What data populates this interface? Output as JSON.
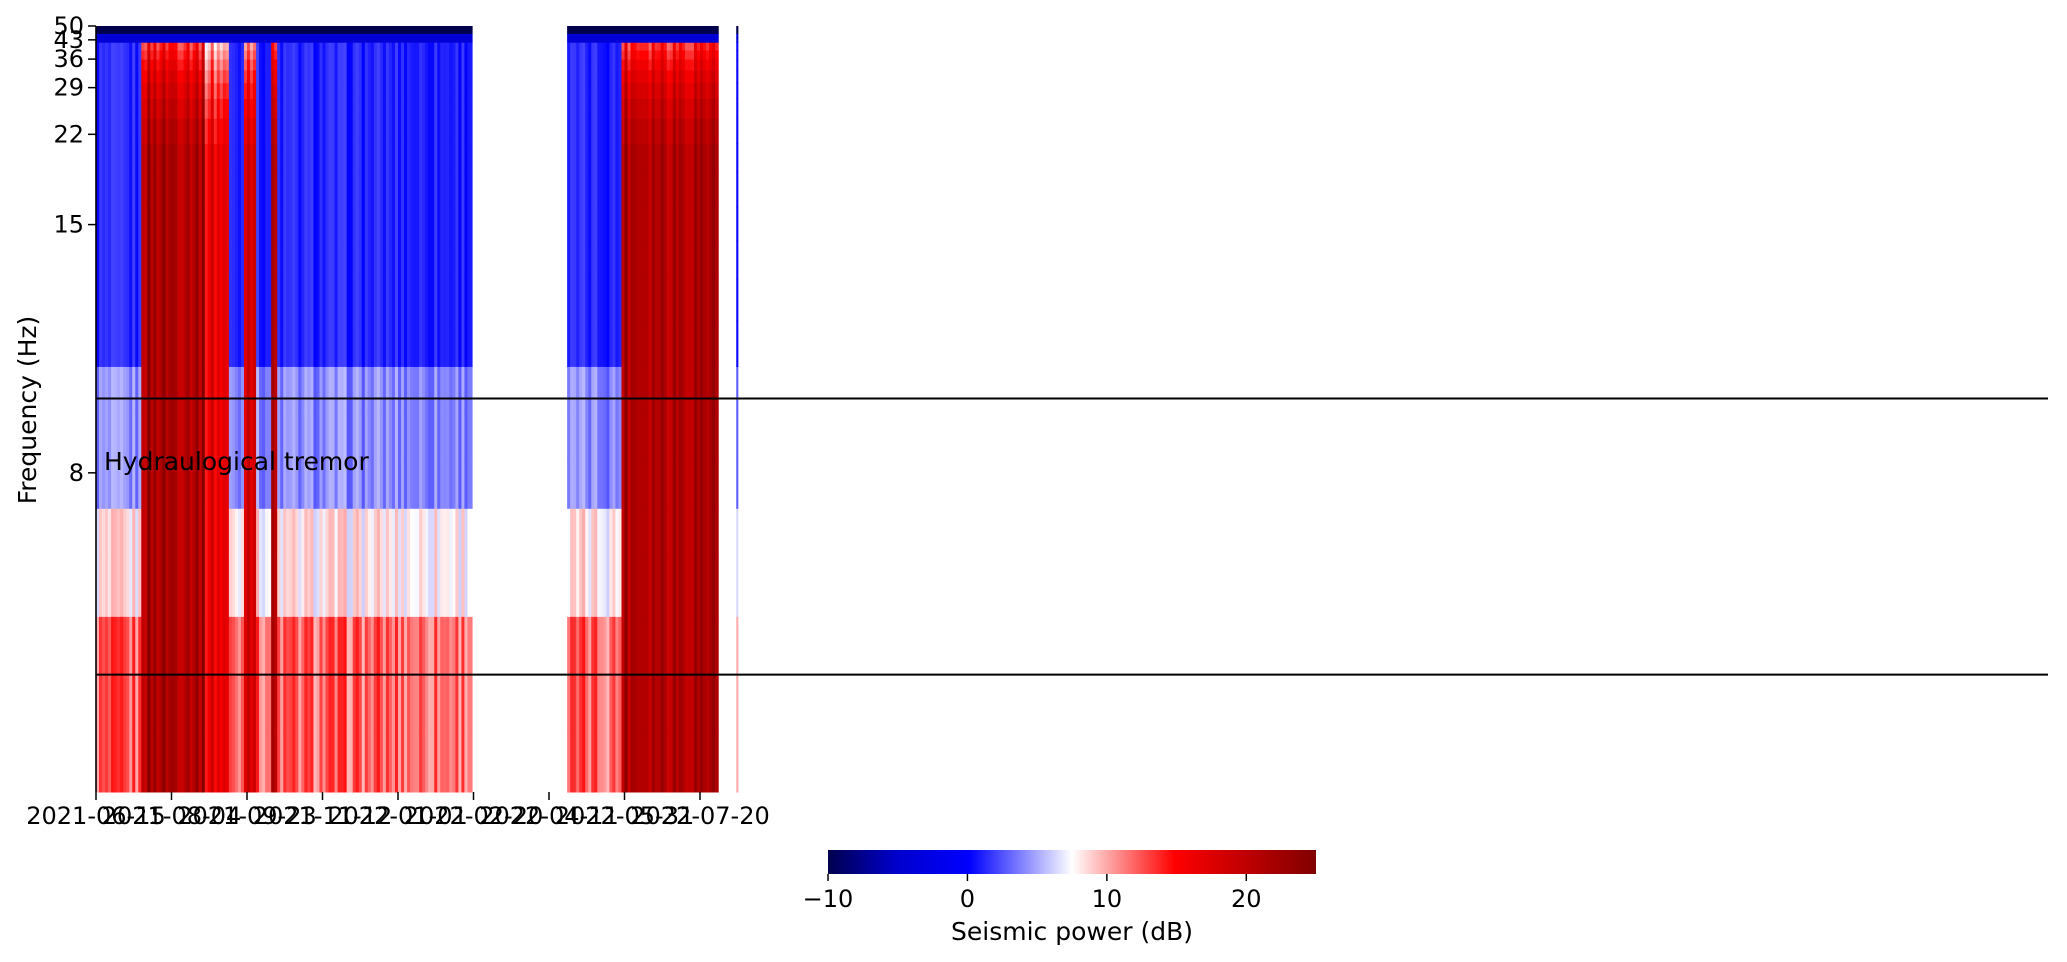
{
  "chart_data": {
    "type": "heatmap",
    "title": "",
    "xlabel": "",
    "ylabel": "Frequency (Hz)",
    "x_range": [
      "2021-06-15",
      "2022-08-15"
    ],
    "y_range": [
      5,
      50
    ],
    "y_scale": "reciprocal",
    "x_tick_labels": [
      "2021-06-15",
      "2021-08-04",
      "2021-09-23",
      "2021-11-12",
      "2022-01-01",
      "2022-02-20",
      "2022-04-11",
      "2022-05-31",
      "2022-07-20"
    ],
    "y_ticks": [
      8,
      15,
      22,
      29,
      36,
      43,
      50
    ],
    "y_tick_labels": [
      "8",
      "15",
      "22",
      "29",
      "36",
      "43",
      "50"
    ],
    "data_coverage": [
      {
        "start": "2021-06-15",
        "end": "2022-02-19"
      },
      {
        "start": "2022-04-23",
        "end": "2022-08-01"
      },
      {
        "start": "2022-08-13",
        "end": "2022-08-14"
      }
    ],
    "high_power_periods": [
      {
        "start": "2021-07-15",
        "end": "2021-08-24",
        "power_db": 22
      },
      {
        "start": "2021-08-26",
        "end": "2021-09-10",
        "power_db": 17
      },
      {
        "start": "2021-09-21",
        "end": "2021-09-28",
        "power_db": 20
      },
      {
        "start": "2021-10-08",
        "end": "2021-10-11",
        "power_db": 20
      },
      {
        "start": "2022-05-28",
        "end": "2022-08-01",
        "power_db": 22
      }
    ],
    "annotations": [
      {
        "text": "Hydraulogical tremor",
        "y_band_hz": [
          5.8,
          9.3
        ]
      }
    ],
    "colorbar": {
      "label": "Seismic power (dB)",
      "range": [
        -10,
        25
      ],
      "ticks": [
        -10,
        0,
        10,
        20
      ],
      "tick_labels": [
        "−10",
        "0",
        "10",
        "20"
      ],
      "colormap": "seismic",
      "colors": [
        "#00004c",
        "#0000ff",
        "#ffffff",
        "#ff0000",
        "#800000"
      ]
    },
    "grid": false,
    "legend": "none"
  }
}
